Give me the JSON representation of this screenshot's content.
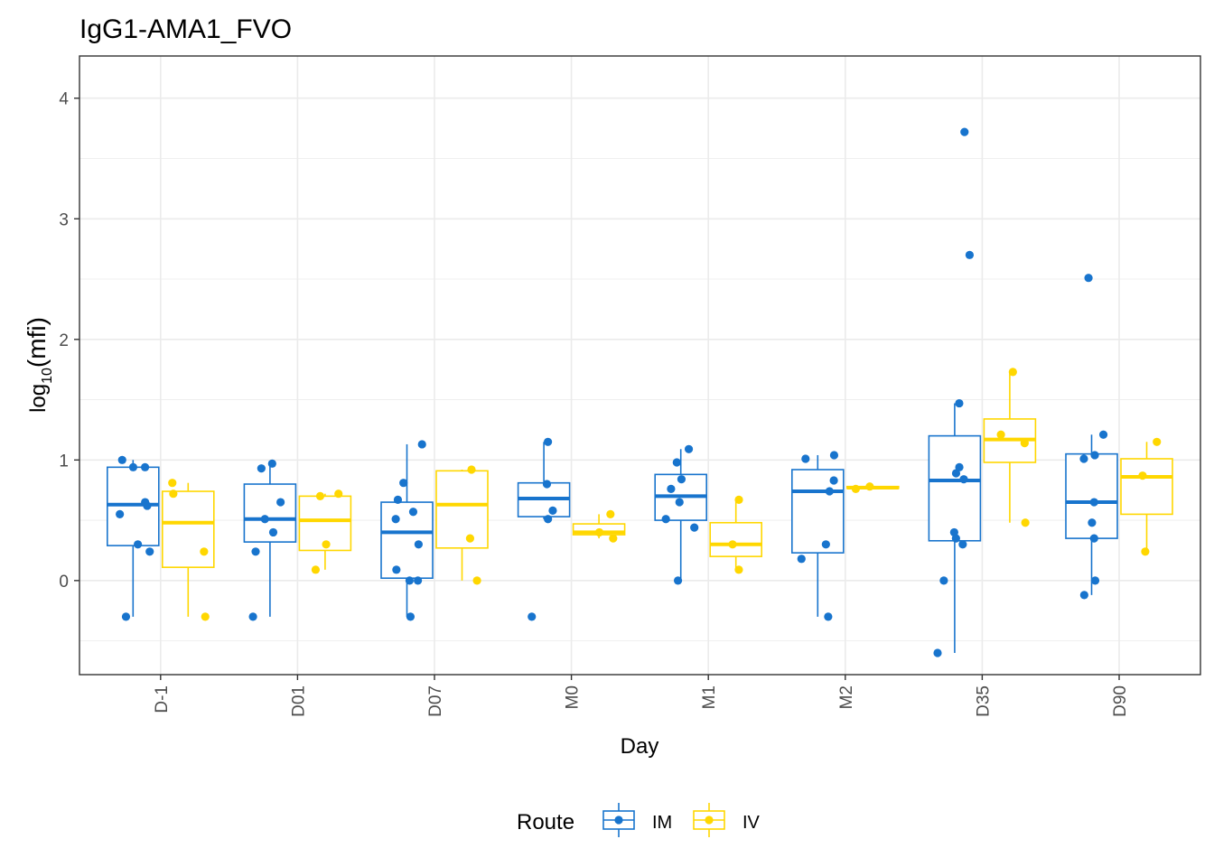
{
  "chart_data": {
    "type": "boxplot",
    "title": "IgG1-AMA1_FVO",
    "xlabel": "Day",
    "ylabel": "log10(mfi)",
    "ylabel_main": "log",
    "ylabel_sub": "10",
    "ylabel_paren": "(mfi)",
    "ylim": [
      -0.78,
      4.35
    ],
    "yticks": [
      0,
      1,
      2,
      3,
      4
    ],
    "ytick_labels": [
      "0",
      "1",
      "2",
      "3",
      "4"
    ],
    "grid": true,
    "categories": [
      "D-1",
      "D01",
      "D07",
      "M0",
      "M1",
      "M2",
      "D35",
      "D90"
    ],
    "legend": {
      "title": "Route",
      "position": "bottom",
      "entries": [
        "IM",
        "IV"
      ]
    },
    "colors": {
      "IM": "#1874CD",
      "IV": "#FFD700"
    },
    "series": [
      {
        "name": "IM",
        "boxes": [
          {
            "category": "D-1",
            "whisker_low": -0.3,
            "q1": 0.29,
            "median": 0.63,
            "q3": 0.94,
            "whisker_high": 1.0
          },
          {
            "category": "D01",
            "whisker_low": -0.3,
            "q1": 0.32,
            "median": 0.51,
            "q3": 0.8,
            "whisker_high": 0.97
          },
          {
            "category": "D07",
            "whisker_low": -0.3,
            "q1": 0.02,
            "median": 0.4,
            "q3": 0.65,
            "whisker_high": 1.13
          },
          {
            "category": "M0",
            "whisker_low": 0.51,
            "q1": 0.53,
            "median": 0.68,
            "q3": 0.81,
            "whisker_high": 1.15
          },
          {
            "category": "M1",
            "whisker_low": 0.0,
            "q1": 0.5,
            "median": 0.7,
            "q3": 0.88,
            "whisker_high": 1.09
          },
          {
            "category": "M2",
            "whisker_low": -0.3,
            "q1": 0.23,
            "median": 0.74,
            "q3": 0.92,
            "whisker_high": 1.04
          },
          {
            "category": "D35",
            "whisker_low": -0.6,
            "q1": 0.33,
            "median": 0.83,
            "q3": 1.2,
            "whisker_high": 1.47
          },
          {
            "category": "D90",
            "whisker_low": -0.12,
            "q1": 0.35,
            "median": 0.65,
            "q3": 1.05,
            "whisker_high": 1.21
          }
        ],
        "points": [
          {
            "category": "D-1",
            "values": [
              1.0,
              0.94,
              0.94,
              0.65,
              0.62,
              0.55,
              0.3,
              0.24,
              -0.3
            ]
          },
          {
            "category": "D01",
            "values": [
              0.97,
              0.93,
              0.65,
              0.51,
              0.4,
              0.24,
              -0.3
            ]
          },
          {
            "category": "D07",
            "values": [
              1.13,
              0.81,
              0.67,
              0.57,
              0.51,
              0.3,
              0.09,
              0.0,
              0.0,
              -0.3
            ]
          },
          {
            "category": "M0",
            "values": [
              1.15,
              0.8,
              0.58,
              0.51,
              -0.3
            ]
          },
          {
            "category": "M1",
            "values": [
              1.09,
              0.98,
              0.84,
              0.76,
              0.65,
              0.51,
              0.44,
              0.0
            ]
          },
          {
            "category": "M2",
            "values": [
              1.04,
              1.01,
              0.83,
              0.74,
              0.3,
              0.18,
              -0.3
            ]
          },
          {
            "category": "D35",
            "values": [
              3.72,
              2.7,
              1.47,
              0.94,
              0.89,
              0.84,
              0.4,
              0.35,
              0.3,
              0.0,
              -0.6
            ]
          },
          {
            "category": "D90",
            "values": [
              2.51,
              1.21,
              1.04,
              1.01,
              0.65,
              0.48,
              0.35,
              0.0,
              -0.12
            ]
          }
        ]
      },
      {
        "name": "IV",
        "boxes": [
          {
            "category": "D-1",
            "whisker_low": -0.3,
            "q1": 0.11,
            "median": 0.48,
            "q3": 0.74,
            "whisker_high": 0.81
          },
          {
            "category": "D01",
            "whisker_low": 0.09,
            "q1": 0.25,
            "median": 0.5,
            "q3": 0.7,
            "whisker_high": 0.72
          },
          {
            "category": "D07",
            "whisker_low": 0.0,
            "q1": 0.27,
            "median": 0.63,
            "q3": 0.91,
            "whisker_high": 0.92
          },
          {
            "category": "M0",
            "whisker_low": 0.35,
            "q1": 0.38,
            "median": 0.4,
            "q3": 0.47,
            "whisker_high": 0.55
          },
          {
            "category": "M1",
            "whisker_low": 0.09,
            "q1": 0.2,
            "median": 0.3,
            "q3": 0.48,
            "whisker_high": 0.67
          },
          {
            "category": "M2",
            "whisker_low": 0.76,
            "q1": 0.765,
            "median": 0.77,
            "q3": 0.78,
            "whisker_high": 0.78
          },
          {
            "category": "D35",
            "whisker_low": 0.48,
            "q1": 0.98,
            "median": 1.17,
            "q3": 1.34,
            "whisker_high": 1.73
          },
          {
            "category": "D90",
            "whisker_low": 0.24,
            "q1": 0.55,
            "median": 0.86,
            "q3": 1.01,
            "whisker_high": 1.15
          }
        ],
        "points": [
          {
            "category": "D-1",
            "values": [
              0.81,
              0.72,
              0.24,
              -0.3
            ]
          },
          {
            "category": "D01",
            "values": [
              0.72,
              0.7,
              0.3,
              0.09
            ]
          },
          {
            "category": "D07",
            "values": [
              0.92,
              0.35,
              0.0
            ]
          },
          {
            "category": "M0",
            "values": [
              0.55,
              0.4,
              0.35
            ]
          },
          {
            "category": "M1",
            "values": [
              0.67,
              0.3,
              0.09
            ]
          },
          {
            "category": "M2",
            "values": [
              0.76,
              0.78
            ]
          },
          {
            "category": "D35",
            "values": [
              1.73,
              1.21,
              1.14,
              0.48
            ]
          },
          {
            "category": "D90",
            "values": [
              1.15,
              0.87,
              0.24
            ]
          }
        ]
      }
    ]
  }
}
